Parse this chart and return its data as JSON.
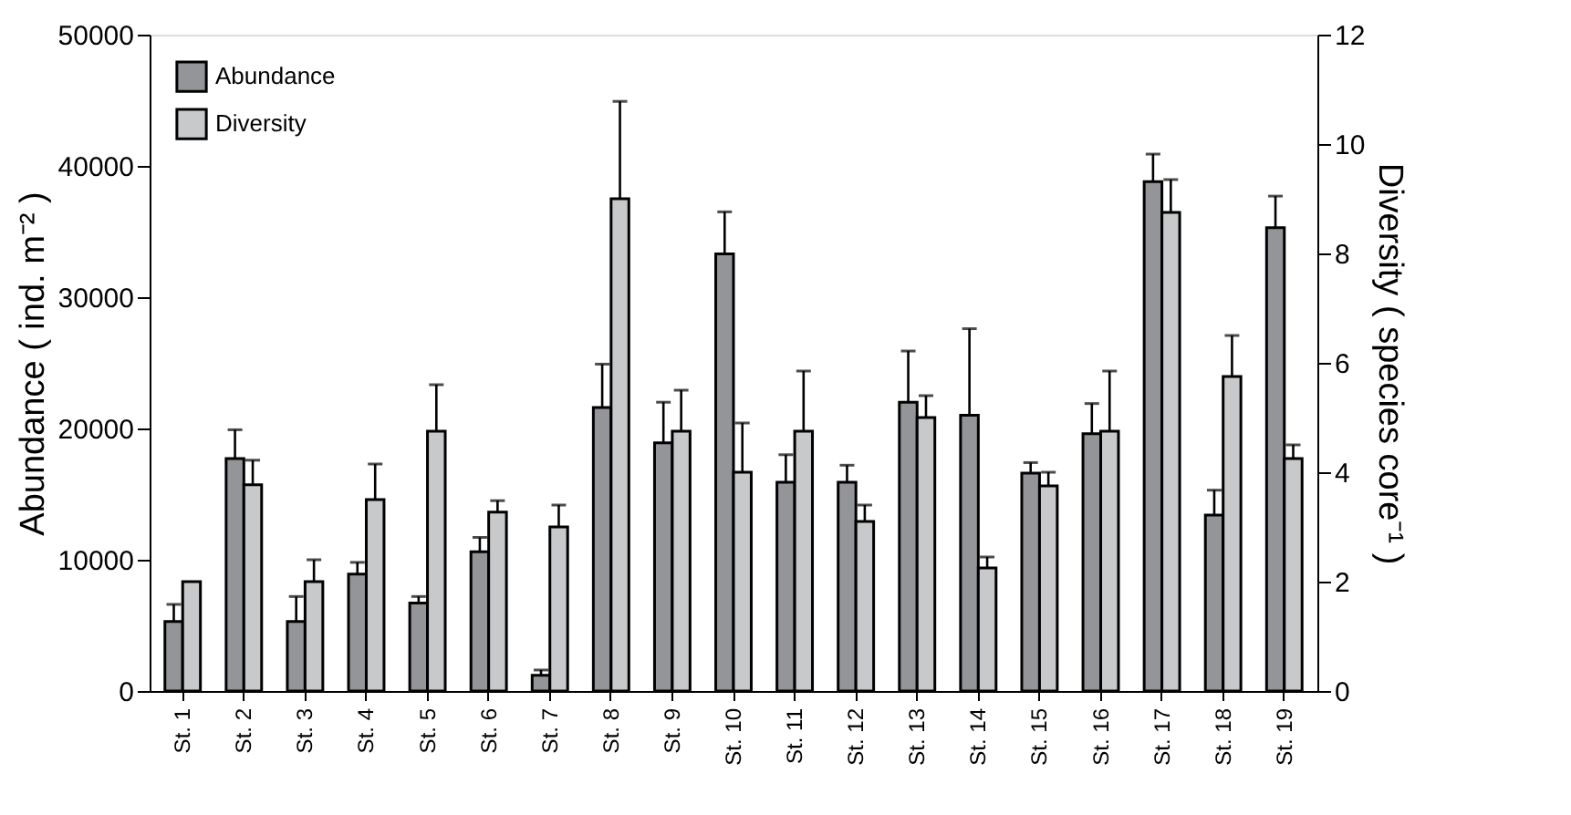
{
  "chart_data": {
    "type": "bar",
    "ylabel": "Abundance ( ind. m⁻² )",
    "y2label": "Diversity ( species core⁻¹ )",
    "categories": [
      "St. 1",
      "St. 2",
      "St. 3",
      "St. 4",
      "St. 5",
      "St. 6",
      "St. 7",
      "St. 8",
      "St. 9",
      "St. 10",
      "St. 11",
      "St. 12",
      "St. 13",
      "St. 14",
      "St. 15",
      "St. 16",
      "St. 17",
      "St. 18",
      "St. 19"
    ],
    "ylim": [
      0,
      50000
    ],
    "yticks": [
      0,
      10000,
      20000,
      30000,
      40000,
      50000
    ],
    "y2lim": [
      0,
      12
    ],
    "y2ticks": [
      0,
      2,
      4,
      6,
      8,
      10,
      12
    ],
    "legend": "top left",
    "grid": false,
    "series": [
      {
        "name": "Abundance",
        "color": "#939598",
        "values": [
          5300,
          17700,
          5300,
          8900,
          6700,
          10600,
          1200,
          21600,
          18900,
          33300,
          15900,
          15900,
          22000,
          21000,
          16600,
          19600,
          38800,
          13400,
          35300
        ],
        "errors": [
          [
            5300,
            6600
          ],
          [
            17700,
            19900
          ],
          [
            5300,
            7200
          ],
          [
            8900,
            9800
          ],
          [
            6700,
            7200
          ],
          [
            10600,
            11700
          ],
          [
            1200,
            1600
          ],
          [
            21600,
            24900
          ],
          [
            18900,
            22000
          ],
          [
            33300,
            36500
          ],
          [
            15900,
            18000
          ],
          [
            15900,
            17200
          ],
          [
            22000,
            25900
          ],
          [
            21000,
            27600
          ],
          [
            16600,
            17400
          ],
          [
            19600,
            21900
          ],
          [
            38800,
            40900
          ],
          [
            13400,
            15300
          ],
          [
            35300,
            37700
          ]
        ]
      },
      {
        "name": "Diversity",
        "color": "#c8c9cb",
        "axis": "y2",
        "values": [
          2.0,
          3.77,
          2.0,
          3.5,
          4.75,
          3.27,
          3.0,
          9.0,
          4.75,
          4.0,
          4.75,
          3.1,
          5.0,
          2.25,
          3.75,
          4.75,
          8.75,
          5.75,
          4.25
        ],
        "errors": [
          null,
          [
            3.77,
            4.22
          ],
          [
            2.0,
            2.4
          ],
          [
            3.5,
            4.15
          ],
          [
            4.75,
            5.6
          ],
          [
            3.27,
            3.48
          ],
          [
            3.0,
            3.4
          ],
          [
            9.0,
            10.78
          ],
          [
            4.75,
            5.5
          ],
          [
            4.0,
            4.9
          ],
          [
            4.75,
            5.85
          ],
          [
            3.1,
            3.4
          ],
          [
            5.0,
            5.4
          ],
          [
            2.25,
            2.45
          ],
          [
            3.75,
            4.0
          ],
          [
            4.75,
            5.85
          ],
          [
            8.75,
            9.35
          ],
          [
            5.75,
            6.5
          ],
          [
            4.25,
            4.5
          ]
        ]
      }
    ]
  }
}
